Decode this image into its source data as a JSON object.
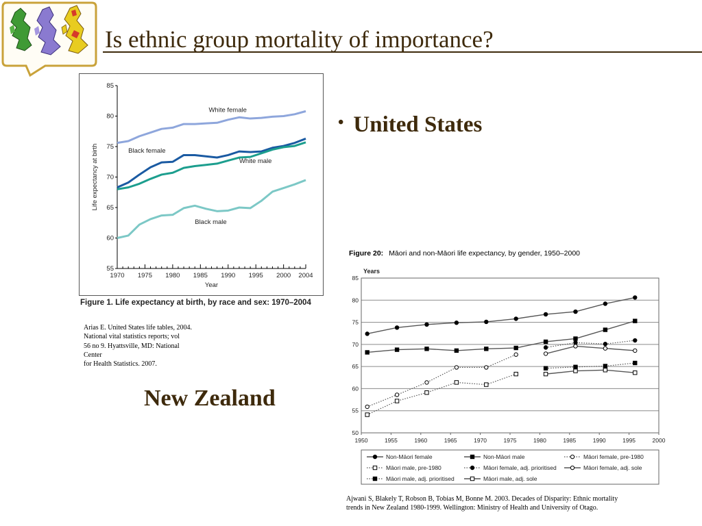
{
  "slide": {
    "title": "Is ethnic group mortality of importance?",
    "bullet": "United States",
    "nz_heading": "New Zealand"
  },
  "colors": {
    "title": "#3e2a0c",
    "white_female": "#8ea6dc",
    "black_female": "#1a5aa2",
    "white_male": "#1c9e8e",
    "black_male": "#7cc8c6"
  },
  "icons": [
    "uk-maps-logo"
  ],
  "us": {
    "caption": "Figure 1. Life expectancy at birth, by race and sex: 1970–2004",
    "citation": "Arias E. United States life tables, 2004.\nNational vital statistics reports; vol\n56 no 9. Hyattsville, MD: National\nCenter\nfor Health Statistics. 2007."
  },
  "nz": {
    "figure_label": "Figure 20:",
    "figure_title": "Māori and non-Māori life expectancy, by gender, 1950–2000",
    "citation": "Ajwani S, Blakely T, Robson B, Tobias M, Bonne M. 2003. Decades of Disparity: Ethnic mortality trends in New Zealand 1980-1999. Wellington: Ministry of Health and University of Otago."
  },
  "chart_data": [
    {
      "type": "line",
      "xlabel": "Year",
      "ylabel": "Life expectancy at birth",
      "xlim": [
        1970,
        2004
      ],
      "ylim": [
        55,
        85
      ],
      "x_ticks": [
        1970,
        1975,
        1980,
        1985,
        1990,
        1995,
        2000,
        2004
      ],
      "y_ticks": [
        55,
        60,
        65,
        70,
        75,
        80,
        85
      ],
      "grid": false,
      "x": [
        1970,
        1972,
        1974,
        1976,
        1978,
        1980,
        1982,
        1984,
        1986,
        1988,
        1990,
        1992,
        1994,
        1996,
        1998,
        2000,
        2002,
        2004
      ],
      "series": [
        {
          "name": "White female",
          "color": "#8ea6dc",
          "values": [
            75.6,
            75.9,
            76.7,
            77.3,
            77.9,
            78.1,
            78.7,
            78.7,
            78.8,
            78.9,
            79.4,
            79.8,
            79.6,
            79.7,
            79.9,
            80.0,
            80.3,
            80.8
          ]
        },
        {
          "name": "Black female",
          "color": "#1a5aa2",
          "values": [
            68.3,
            69.1,
            70.4,
            71.6,
            72.4,
            72.5,
            73.6,
            73.6,
            73.4,
            73.2,
            73.6,
            74.2,
            74.1,
            74.2,
            74.8,
            75.1,
            75.6,
            76.3
          ]
        },
        {
          "name": "White male",
          "color": "#1c9e8e",
          "values": [
            68.0,
            68.3,
            68.9,
            69.7,
            70.4,
            70.7,
            71.5,
            71.8,
            72.0,
            72.2,
            72.7,
            73.2,
            73.3,
            73.9,
            74.5,
            74.9,
            75.1,
            75.7
          ]
        },
        {
          "name": "Black male",
          "color": "#7cc8c6",
          "values": [
            60.0,
            60.4,
            62.2,
            63.1,
            63.7,
            63.8,
            64.9,
            65.3,
            64.8,
            64.4,
            64.5,
            65.0,
            64.9,
            66.1,
            67.6,
            68.2,
            68.8,
            69.5
          ]
        }
      ],
      "annotations": [
        "White female",
        "Black female",
        "White male",
        "Black male"
      ]
    },
    {
      "type": "line",
      "ylabel": "Years",
      "xlim": [
        1950,
        2000
      ],
      "ylim": [
        50,
        85
      ],
      "x_ticks": [
        1950,
        1955,
        1960,
        1965,
        1970,
        1975,
        1980,
        1985,
        1990,
        1995,
        2000
      ],
      "y_ticks": [
        50,
        55,
        60,
        65,
        70,
        75,
        80,
        85
      ],
      "grid": true,
      "legend": "bottom",
      "series": [
        {
          "name": "Non-Māori female",
          "style": "solid",
          "marker": "filled-circle",
          "x": [
            1951,
            1956,
            1961,
            1966,
            1971,
            1976,
            1981,
            1986,
            1991,
            1996
          ],
          "values": [
            72.4,
            73.8,
            74.5,
            74.9,
            75.1,
            75.8,
            76.8,
            77.4,
            79.2,
            80.6
          ]
        },
        {
          "name": "Non-Māori male",
          "style": "solid",
          "marker": "filled-square",
          "x": [
            1951,
            1956,
            1961,
            1966,
            1971,
            1976,
            1981,
            1986,
            1991,
            1996
          ],
          "values": [
            68.2,
            68.8,
            69.0,
            68.6,
            69.0,
            69.2,
            70.6,
            71.3,
            73.3,
            75.3
          ]
        },
        {
          "name": "Māori female, pre-1980",
          "style": "dotted",
          "marker": "open-circle",
          "x": [
            1951,
            1956,
            1961,
            1966,
            1971,
            1976
          ],
          "values": [
            55.9,
            58.6,
            61.4,
            64.8,
            64.8,
            67.7
          ]
        },
        {
          "name": "Māori male, pre-1980",
          "style": "dotted",
          "marker": "open-square",
          "x": [
            1951,
            1956,
            1961,
            1966,
            1971,
            1976
          ],
          "values": [
            54.1,
            57.2,
            59.1,
            61.4,
            60.9,
            63.3
          ]
        },
        {
          "name": "Māori female, adj. prioritised",
          "style": "dotted",
          "marker": "filled-circle",
          "x": [
            1981,
            1986,
            1991,
            1996
          ],
          "values": [
            69.3,
            70.4,
            70.1,
            70.9
          ]
        },
        {
          "name": "Māori female, adj. sole",
          "style": "solid",
          "marker": "open-circle",
          "x": [
            1981,
            1986,
            1991,
            1996
          ],
          "values": [
            67.9,
            69.6,
            69.1,
            68.6
          ]
        },
        {
          "name": "Māori male, adj. prioritised",
          "style": "dotted",
          "marker": "filled-square",
          "x": [
            1981,
            1986,
            1991,
            1996
          ],
          "values": [
            64.6,
            64.9,
            65.1,
            65.8
          ]
        },
        {
          "name": "Māori male, adj. sole",
          "style": "solid",
          "marker": "open-square",
          "x": [
            1981,
            1986,
            1991,
            1996
          ],
          "values": [
            63.3,
            64.0,
            64.2,
            63.6
          ]
        }
      ]
    }
  ]
}
